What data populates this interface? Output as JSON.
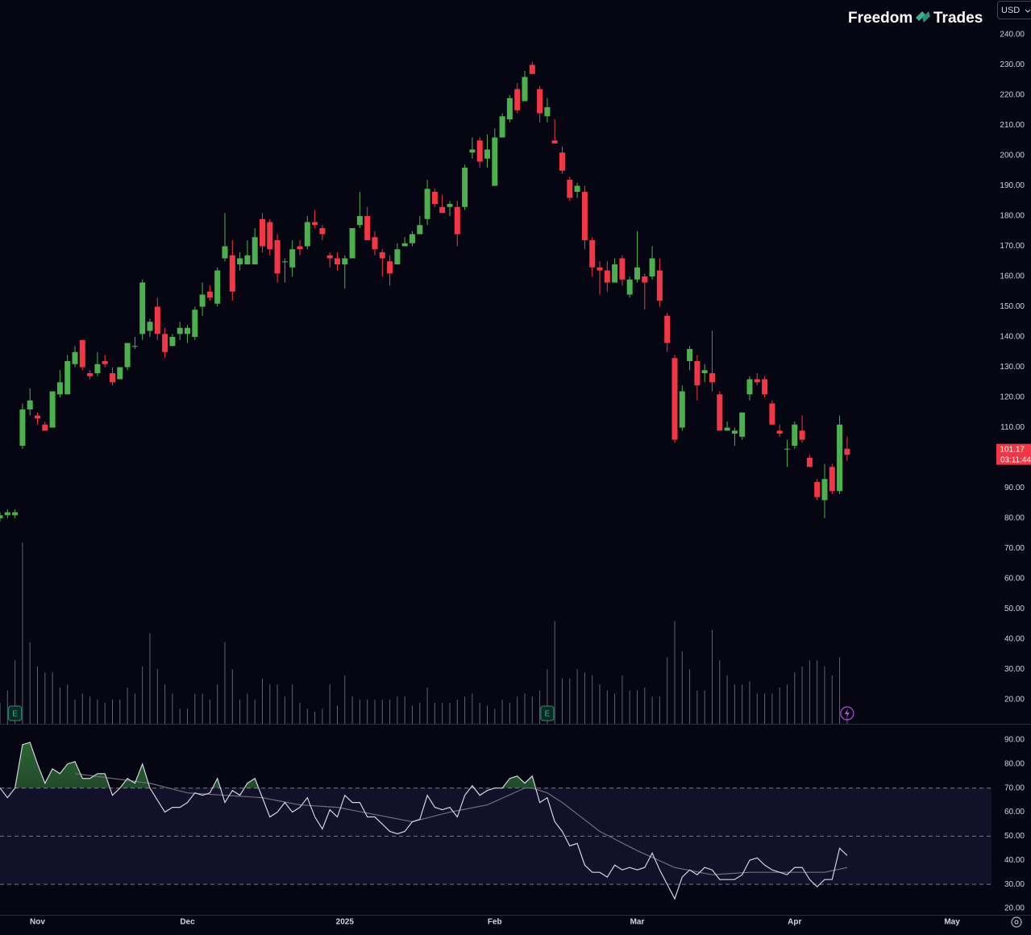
{
  "header": {
    "brand_left": "Freedom",
    "brand_right": "Trades",
    "currency": "USD"
  },
  "chart_data": [
    {
      "type": "candlestick",
      "up_color": "#4caf50",
      "down_color": "#f23645",
      "volume_color": "#787b86",
      "xlim": [
        0,
        132.26
      ],
      "ylim": [
        12,
        251.47
      ],
      "yticks": [
        {
          "value": 20,
          "label": "20.00"
        },
        {
          "value": 30,
          "label": "30.00"
        },
        {
          "value": 40,
          "label": "40.00"
        },
        {
          "value": 50,
          "label": "50.00"
        },
        {
          "value": 60,
          "label": "60.00"
        },
        {
          "value": 70,
          "label": "70.00"
        },
        {
          "value": 80,
          "label": "80.00"
        },
        {
          "value": 90,
          "label": "90.00"
        },
        {
          "value": 100,
          "label": "100.00"
        },
        {
          "value": 110,
          "label": "110.00"
        },
        {
          "value": 120,
          "label": "120.00"
        },
        {
          "value": 130,
          "label": "130.00"
        },
        {
          "value": 140,
          "label": "140.00"
        },
        {
          "value": 150,
          "label": "150.00"
        },
        {
          "value": 160,
          "label": "160.00"
        },
        {
          "value": 170,
          "label": "170.00"
        },
        {
          "value": 180,
          "label": "180.00"
        },
        {
          "value": 190,
          "label": "190.00"
        },
        {
          "value": 200,
          "label": "200.00"
        },
        {
          "value": 210,
          "label": "210.00"
        },
        {
          "value": 220,
          "label": "220.00"
        },
        {
          "value": 230,
          "label": "230.00"
        },
        {
          "value": 240,
          "label": "240.00"
        }
      ],
      "open": [
        80,
        81,
        81,
        104,
        116,
        114,
        111,
        110,
        121,
        121,
        131,
        139,
        128,
        128,
        132,
        128,
        126,
        130,
        137,
        141,
        142,
        150,
        141,
        137,
        141,
        141,
        140,
        150,
        155,
        151,
        166,
        167,
        164,
        164,
        164,
        179,
        178,
        172,
        165,
        163,
        170,
        170,
        178,
        176,
        167,
        166,
        164,
        166,
        177,
        180,
        173,
        168,
        165,
        164,
        170,
        171,
        174,
        179,
        188,
        183,
        183,
        183,
        183,
        201,
        205,
        199,
        190,
        206,
        212,
        222,
        218,
        230,
        222,
        213,
        205,
        201,
        192,
        188,
        188,
        172,
        163,
        162,
        158,
        166,
        154,
        159,
        160,
        160,
        162,
        147,
        133,
        110,
        132,
        132,
        128,
        128,
        121,
        109,
        108,
        107,
        121,
        126,
        126,
        118,
        109,
        103,
        104,
        109,
        100,
        92,
        86,
        97,
        89,
        103
      ],
      "high": [
        82,
        83,
        83,
        118,
        123,
        115,
        112,
        122,
        129,
        134,
        137,
        139,
        129,
        135,
        134,
        130,
        130,
        138,
        140,
        159,
        146,
        153,
        143,
        141,
        145,
        144,
        150,
        158,
        157,
        163,
        181,
        172,
        168,
        172,
        176,
        181,
        179,
        174,
        166,
        172,
        172,
        180,
        182,
        177,
        168,
        168,
        167,
        176,
        188,
        183,
        175,
        169,
        167,
        171,
        173,
        175,
        180,
        192,
        189,
        187,
        185,
        185,
        197,
        206,
        206,
        207,
        209,
        214,
        220,
        224,
        228,
        231,
        223,
        219,
        212,
        203,
        193,
        191,
        190,
        173,
        165,
        165,
        166,
        167,
        160,
        175,
        161,
        170,
        166,
        148,
        134,
        124,
        137,
        134,
        131,
        142,
        122,
        112,
        110,
        115,
        127,
        128,
        127,
        119,
        111,
        106,
        112,
        114,
        101,
        93,
        98,
        98,
        114,
        107
      ],
      "low": [
        79,
        80,
        80,
        103,
        114,
        111,
        109,
        110,
        120,
        121,
        130,
        129,
        126,
        127,
        130,
        124,
        126,
        129,
        136,
        139,
        140,
        139,
        133,
        137,
        139,
        138,
        139,
        147,
        152,
        150,
        165,
        152,
        162,
        164,
        164,
        168,
        167,
        158,
        158,
        160,
        167,
        169,
        176,
        172,
        163,
        162,
        156,
        166,
        176,
        172,
        167,
        160,
        157,
        164,
        170,
        170,
        174,
        177,
        183,
        181,
        180,
        170,
        182,
        199,
        196,
        196,
        190,
        206,
        211,
        214,
        218,
        227,
        211,
        211,
        204,
        194,
        185,
        186,
        169,
        160,
        154,
        155,
        158,
        157,
        153,
        158,
        149,
        159,
        150,
        135,
        105,
        109,
        129,
        119,
        125,
        122,
        109,
        109,
        104,
        106,
        119,
        124,
        120,
        111,
        107,
        97,
        103,
        105,
        97,
        86,
        80,
        88,
        88,
        99
      ],
      "close": [
        81,
        82,
        82,
        116,
        119,
        113,
        109,
        122,
        125,
        132,
        135,
        130,
        127,
        131,
        131,
        125,
        130,
        138,
        137,
        158,
        145,
        141,
        135,
        140,
        143,
        143,
        149,
        154,
        153,
        162,
        170,
        155,
        166,
        167,
        173,
        170,
        169,
        161,
        165,
        169,
        169,
        178,
        177,
        174,
        166,
        164,
        166,
        176,
        180,
        172,
        169,
        166,
        161,
        169,
        171,
        174,
        177,
        189,
        184,
        181,
        184,
        174,
        196,
        202,
        198,
        202,
        206,
        213,
        219,
        215,
        226,
        227,
        214,
        216,
        204,
        195,
        186,
        190,
        172,
        163,
        162,
        158,
        164,
        159,
        159,
        163,
        158,
        166,
        152,
        138,
        106,
        122,
        136,
        124,
        129,
        125,
        109,
        110,
        109,
        115,
        126,
        125,
        121,
        111,
        108,
        103,
        111,
        106,
        97,
        87,
        93,
        89,
        111,
        101
      ],
      "volume": [
        19,
        23,
        33,
        72,
        39,
        31,
        29,
        29,
        24,
        25,
        20,
        22,
        21,
        20,
        19,
        20,
        20,
        24,
        22,
        31,
        42,
        30,
        25,
        22,
        17,
        17,
        22,
        22,
        20,
        25,
        39,
        30,
        20,
        22,
        20,
        27,
        25,
        25,
        21,
        25,
        19,
        17,
        16,
        17,
        25,
        18,
        28,
        21,
        20,
        20,
        20,
        20,
        20,
        21,
        21,
        18,
        19,
        24,
        19,
        19,
        19,
        20,
        21,
        22,
        19,
        18,
        17,
        20,
        19,
        21,
        22,
        21,
        23,
        30,
        46,
        27,
        27,
        30,
        29,
        28,
        25,
        23,
        22,
        28,
        23,
        23,
        24,
        21,
        21,
        34,
        46,
        36,
        30,
        23,
        23,
        43,
        33,
        28,
        25,
        25,
        26,
        22,
        22,
        22,
        24,
        25,
        29,
        31,
        33,
        33,
        31,
        28,
        34,
        14
      ],
      "earnings_markers": [
        {
          "x": 2,
          "label": "E"
        },
        {
          "x": 73,
          "label": "E"
        }
      ],
      "last_price": {
        "value": 101.17,
        "label": "101.17"
      },
      "countdown": "03:11:44"
    },
    {
      "type": "line",
      "xlim": [
        0,
        132.26
      ],
      "ylim": [
        17.32,
        96.36
      ],
      "yticks": [
        {
          "value": 20,
          "label": "20.00"
        },
        {
          "value": 30,
          "label": "30.00"
        },
        {
          "value": 40,
          "label": "40.00"
        },
        {
          "value": 50,
          "label": "50.00"
        },
        {
          "value": 60,
          "label": "60.00"
        },
        {
          "value": 70,
          "label": "70.00"
        },
        {
          "value": 80,
          "label": "80.00"
        },
        {
          "value": 90,
          "label": "90.00"
        }
      ],
      "xticks": [
        {
          "value": 5,
          "label": "Nov"
        },
        {
          "value": 25,
          "label": "Dec"
        },
        {
          "value": 46,
          "label": "2025"
        },
        {
          "value": 66,
          "label": "Feb"
        },
        {
          "value": 85,
          "label": "Mar"
        },
        {
          "value": 106,
          "label": "Apr"
        },
        {
          "value": 127,
          "label": "May"
        }
      ],
      "bands": [
        70,
        50,
        30
      ],
      "band_fill": "#13102a",
      "overbought_fill": "#4caf50",
      "series": [
        {
          "color": "#d1d4dc",
          "values": [
            70,
            66,
            70,
            88,
            89,
            80,
            72,
            78,
            76,
            80,
            81,
            74,
            74,
            76,
            76,
            67,
            70,
            74,
            72,
            80,
            70,
            65,
            60,
            62,
            62,
            64,
            68,
            67,
            68,
            74,
            64,
            69,
            67,
            72,
            74,
            66,
            58,
            60,
            64,
            60,
            62,
            66,
            58,
            53,
            61,
            58,
            67,
            64,
            64,
            58,
            58,
            55,
            52,
            51,
            52,
            56,
            57,
            67,
            62,
            61,
            62,
            58,
            67,
            71,
            67,
            69,
            70,
            70,
            74,
            75,
            72,
            75,
            64,
            66,
            56,
            52,
            46,
            47,
            38,
            35,
            35,
            33,
            38,
            36,
            37,
            36,
            37,
            43,
            36,
            30,
            24,
            33,
            36,
            34,
            37,
            36,
            32,
            32,
            32,
            34,
            40,
            41,
            38,
            36,
            35,
            34,
            37,
            37,
            32,
            29,
            32,
            32,
            45,
            42
          ]
        },
        {
          "color": "#6f6d7a",
          "values": [
            null,
            null,
            null,
            null,
            null,
            null,
            null,
            null,
            null,
            null,
            76,
            75.6,
            75.2,
            74.8,
            74.4,
            74,
            73.6,
            73.2,
            72.8,
            72.4,
            72,
            71.2,
            70.4,
            69.6,
            68.8,
            68,
            67.8,
            67.6,
            67.4,
            67.2,
            67,
            66.8,
            66.6,
            66.4,
            66.2,
            66,
            65.4,
            64.8,
            64.2,
            63.6,
            63,
            62.8,
            62.6,
            62.4,
            62.2,
            62,
            61.4,
            60.8,
            60.2,
            59.6,
            59,
            58.4,
            57.8,
            57.2,
            56.6,
            56,
            56.8,
            57.6,
            58.4,
            59.2,
            60,
            60.6,
            61.2,
            61.8,
            62.4,
            63,
            64.4,
            65.8,
            67.2,
            68.6,
            70,
            70,
            69,
            68,
            66,
            64,
            61.6,
            59.2,
            56.8,
            54.4,
            52,
            50.4,
            48.8,
            47.2,
            45.6,
            44,
            42.6,
            41.2,
            39.8,
            38.4,
            37,
            36.4,
            35.8,
            35.2,
            34.6,
            34,
            34.2,
            34.4,
            34.6,
            34.8,
            35,
            35,
            35,
            35,
            35,
            35,
            35,
            35,
            35,
            35,
            35,
            35.7,
            36.3,
            37
          ]
        }
      ]
    }
  ]
}
